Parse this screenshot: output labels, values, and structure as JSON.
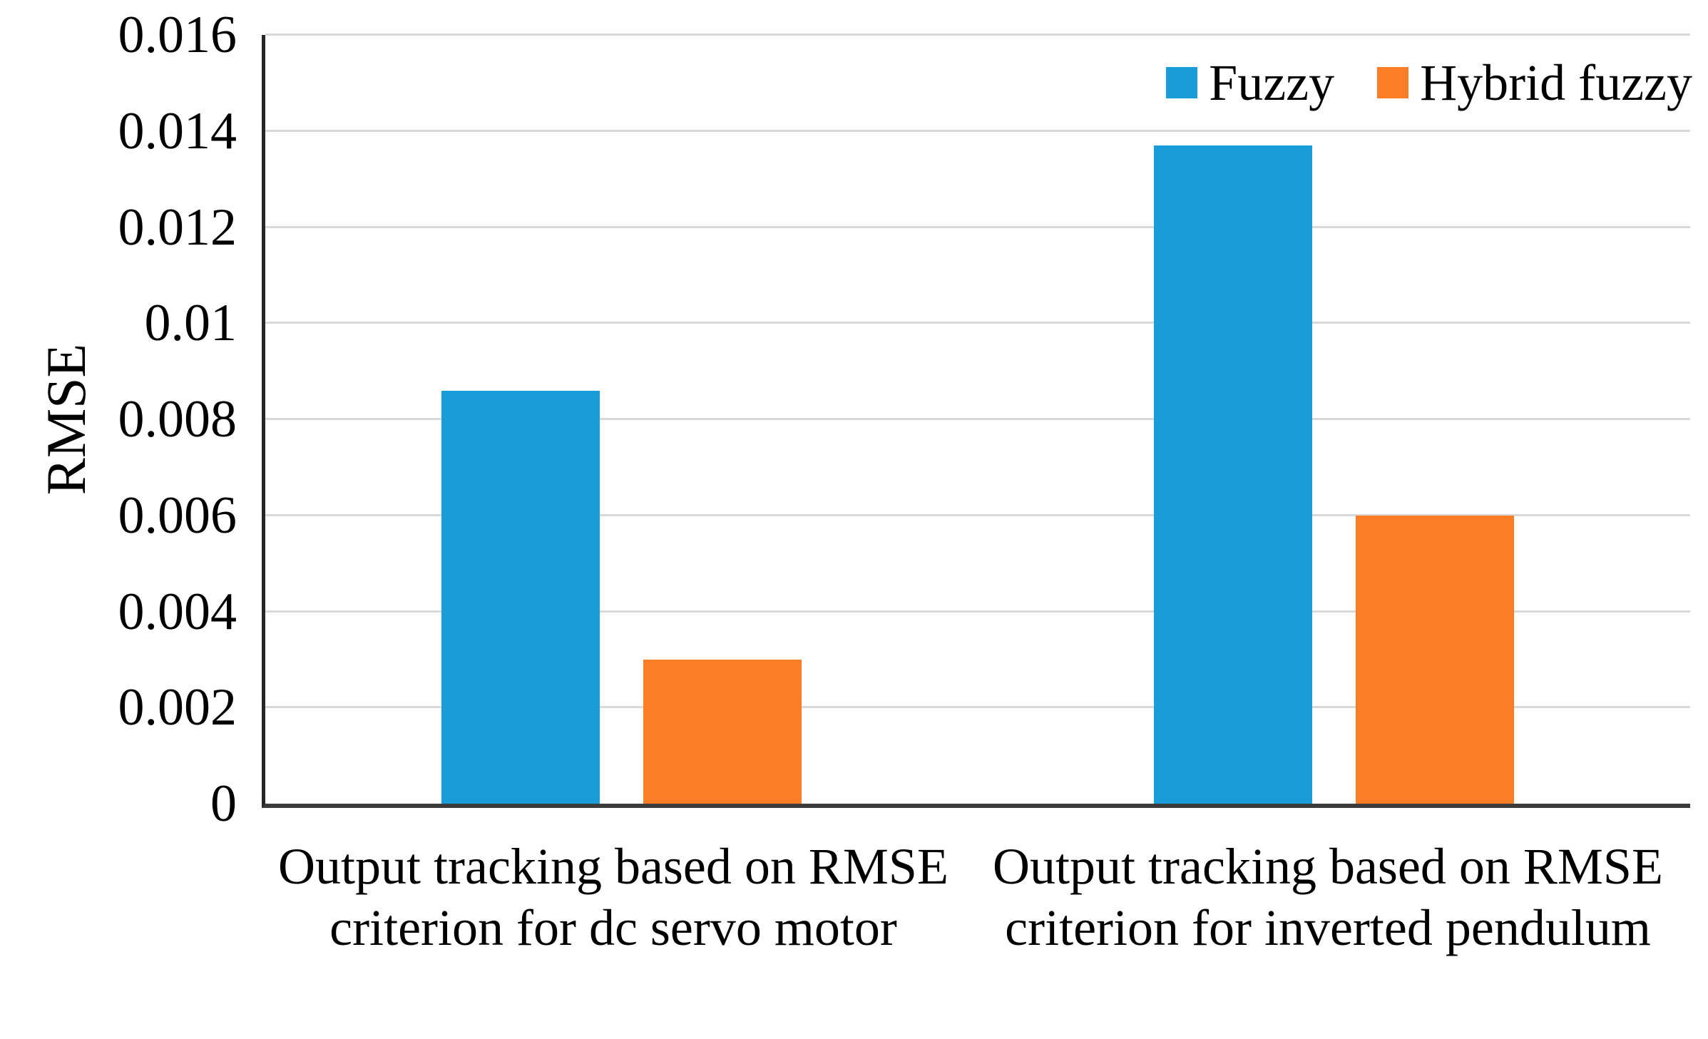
{
  "chart_data": {
    "type": "bar",
    "categories": [
      "Output tracking based on RMSE criterion for dc servo motor",
      "Output tracking based on RMSE criterion for inverted pendulum"
    ],
    "series": [
      {
        "name": "Fuzzy",
        "color": "#199CD8",
        "values": [
          0.0086,
          0.0137
        ]
      },
      {
        "name": "Hybrid fuzzy",
        "color": "#FB7D26",
        "values": [
          0.003,
          0.006
        ]
      }
    ],
    "title": "",
    "xlabel": "",
    "ylabel": "RMSE",
    "ylim": [
      0,
      0.016
    ],
    "ytick_step": 0.002,
    "yticks": [
      "0",
      "0.002",
      "0.004",
      "0.006",
      "0.008",
      "0.01",
      "0.012",
      "0.014",
      "0.016"
    ],
    "grid": true,
    "legend_position": "top-right",
    "colors": {
      "gridline": "#d9d9d9",
      "axis": "#262626",
      "text": "#000000",
      "background": "#ffffff"
    },
    "bar_layout": {
      "bar_width_pct": 11.1,
      "pair_gap_pct": 3.05
    }
  }
}
